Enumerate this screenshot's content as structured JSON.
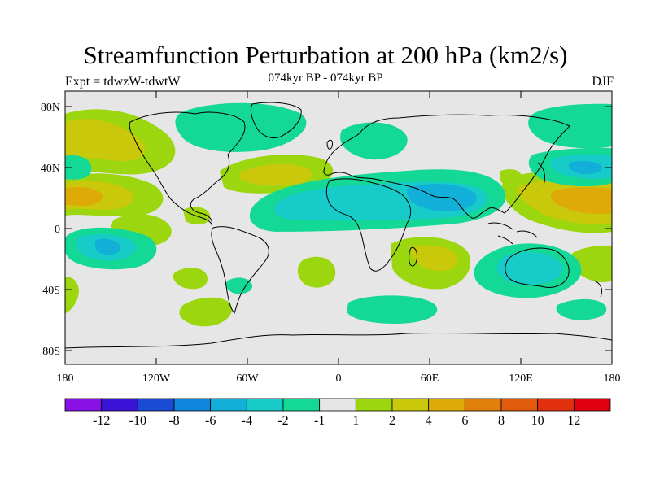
{
  "title": "Streamfunction Perturbation at 200 hPa (km2/s)",
  "subtitle_left": "Expt = tdwzW-tdwtW",
  "subtitle_center": "074kyr BP - 074kyr BP",
  "subtitle_right": "DJF",
  "lat_labels": [
    "80N",
    "40N",
    "0",
    "40S",
    "80S"
  ],
  "lon_labels": [
    "180",
    "120W",
    "60W",
    "0",
    "60E",
    "120E",
    "180"
  ],
  "colorbar": {
    "labels": [
      "-12",
      "-10",
      "-8",
      "-6",
      "-4",
      "-2",
      "-1",
      "1",
      "2",
      "4",
      "6",
      "8",
      "10",
      "12"
    ],
    "colors": [
      "#8a10e8",
      "#3a14d6",
      "#1a4bd4",
      "#0f86dc",
      "#12b0d8",
      "#17ccc8",
      "#14d896",
      "#e6e6e6",
      "#9cd60e",
      "#c9c80a",
      "#ddaa08",
      "#e07f0a",
      "#e25a0c",
      "#e0300e",
      "#e00010"
    ]
  },
  "colors": {
    "ocean": "#e6e6e6",
    "pos1": "#9cd60e",
    "pos2": "#c9c80a",
    "pos3": "#ddaa08",
    "pos4": "#e07f0a",
    "neg1": "#14d896",
    "neg2": "#17ccc8",
    "neg3": "#12b0d8"
  }
}
